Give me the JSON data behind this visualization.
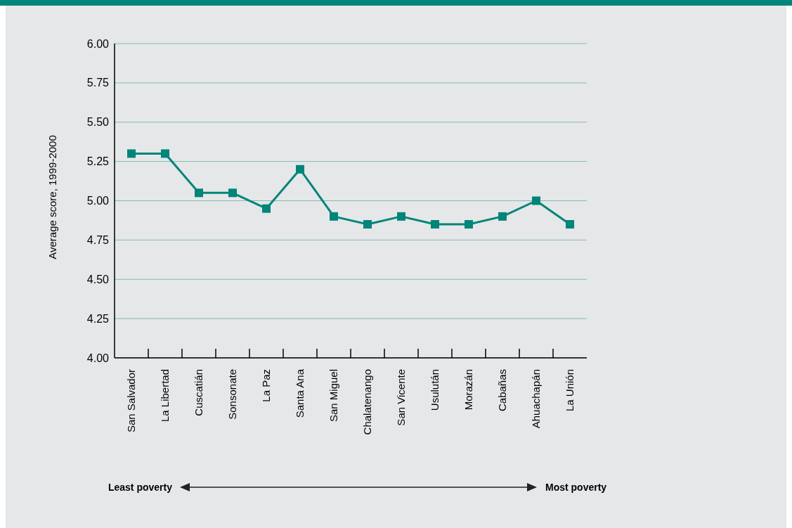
{
  "chart_data": {
    "type": "line",
    "ylabel": "Average score, 1999-2000",
    "categories": [
      "San Salvador",
      "La Libertad",
      "Cuscatián",
      "Sonsonate",
      "La Paz",
      "Santa Ana",
      "San Miguel",
      "Chalatenango",
      "San Vicente",
      "Usulután",
      "Morazán",
      "Cabañas",
      "Ahuachapán",
      "La Unión"
    ],
    "series": [
      {
        "color": "#00857a",
        "values": [
          5.3,
          5.3,
          5.05,
          5.05,
          4.95,
          5.2,
          4.9,
          4.85,
          4.9,
          4.85,
          4.85,
          4.9,
          5.0,
          4.85
        ]
      }
    ],
    "ylim": [
      4,
      6
    ],
    "yticks": [
      {
        "value": 4,
        "label": "4.00"
      },
      {
        "value": 4.25,
        "label": "4.25"
      },
      {
        "value": 4.5,
        "label": "4.50"
      },
      {
        "value": 4.75,
        "label": "4.75"
      },
      {
        "value": 5,
        "label": "5.00"
      },
      {
        "value": 5.25,
        "label": "5.25"
      },
      {
        "value": 5.5,
        "label": "5.50"
      },
      {
        "value": 5.75,
        "label": "5.75"
      },
      {
        "value": 6,
        "label": "6.00"
      }
    ],
    "grid": "y",
    "marker": "square",
    "line_style": "solid",
    "annotations": [
      "Least poverty",
      "Most poverty"
    ]
  }
}
